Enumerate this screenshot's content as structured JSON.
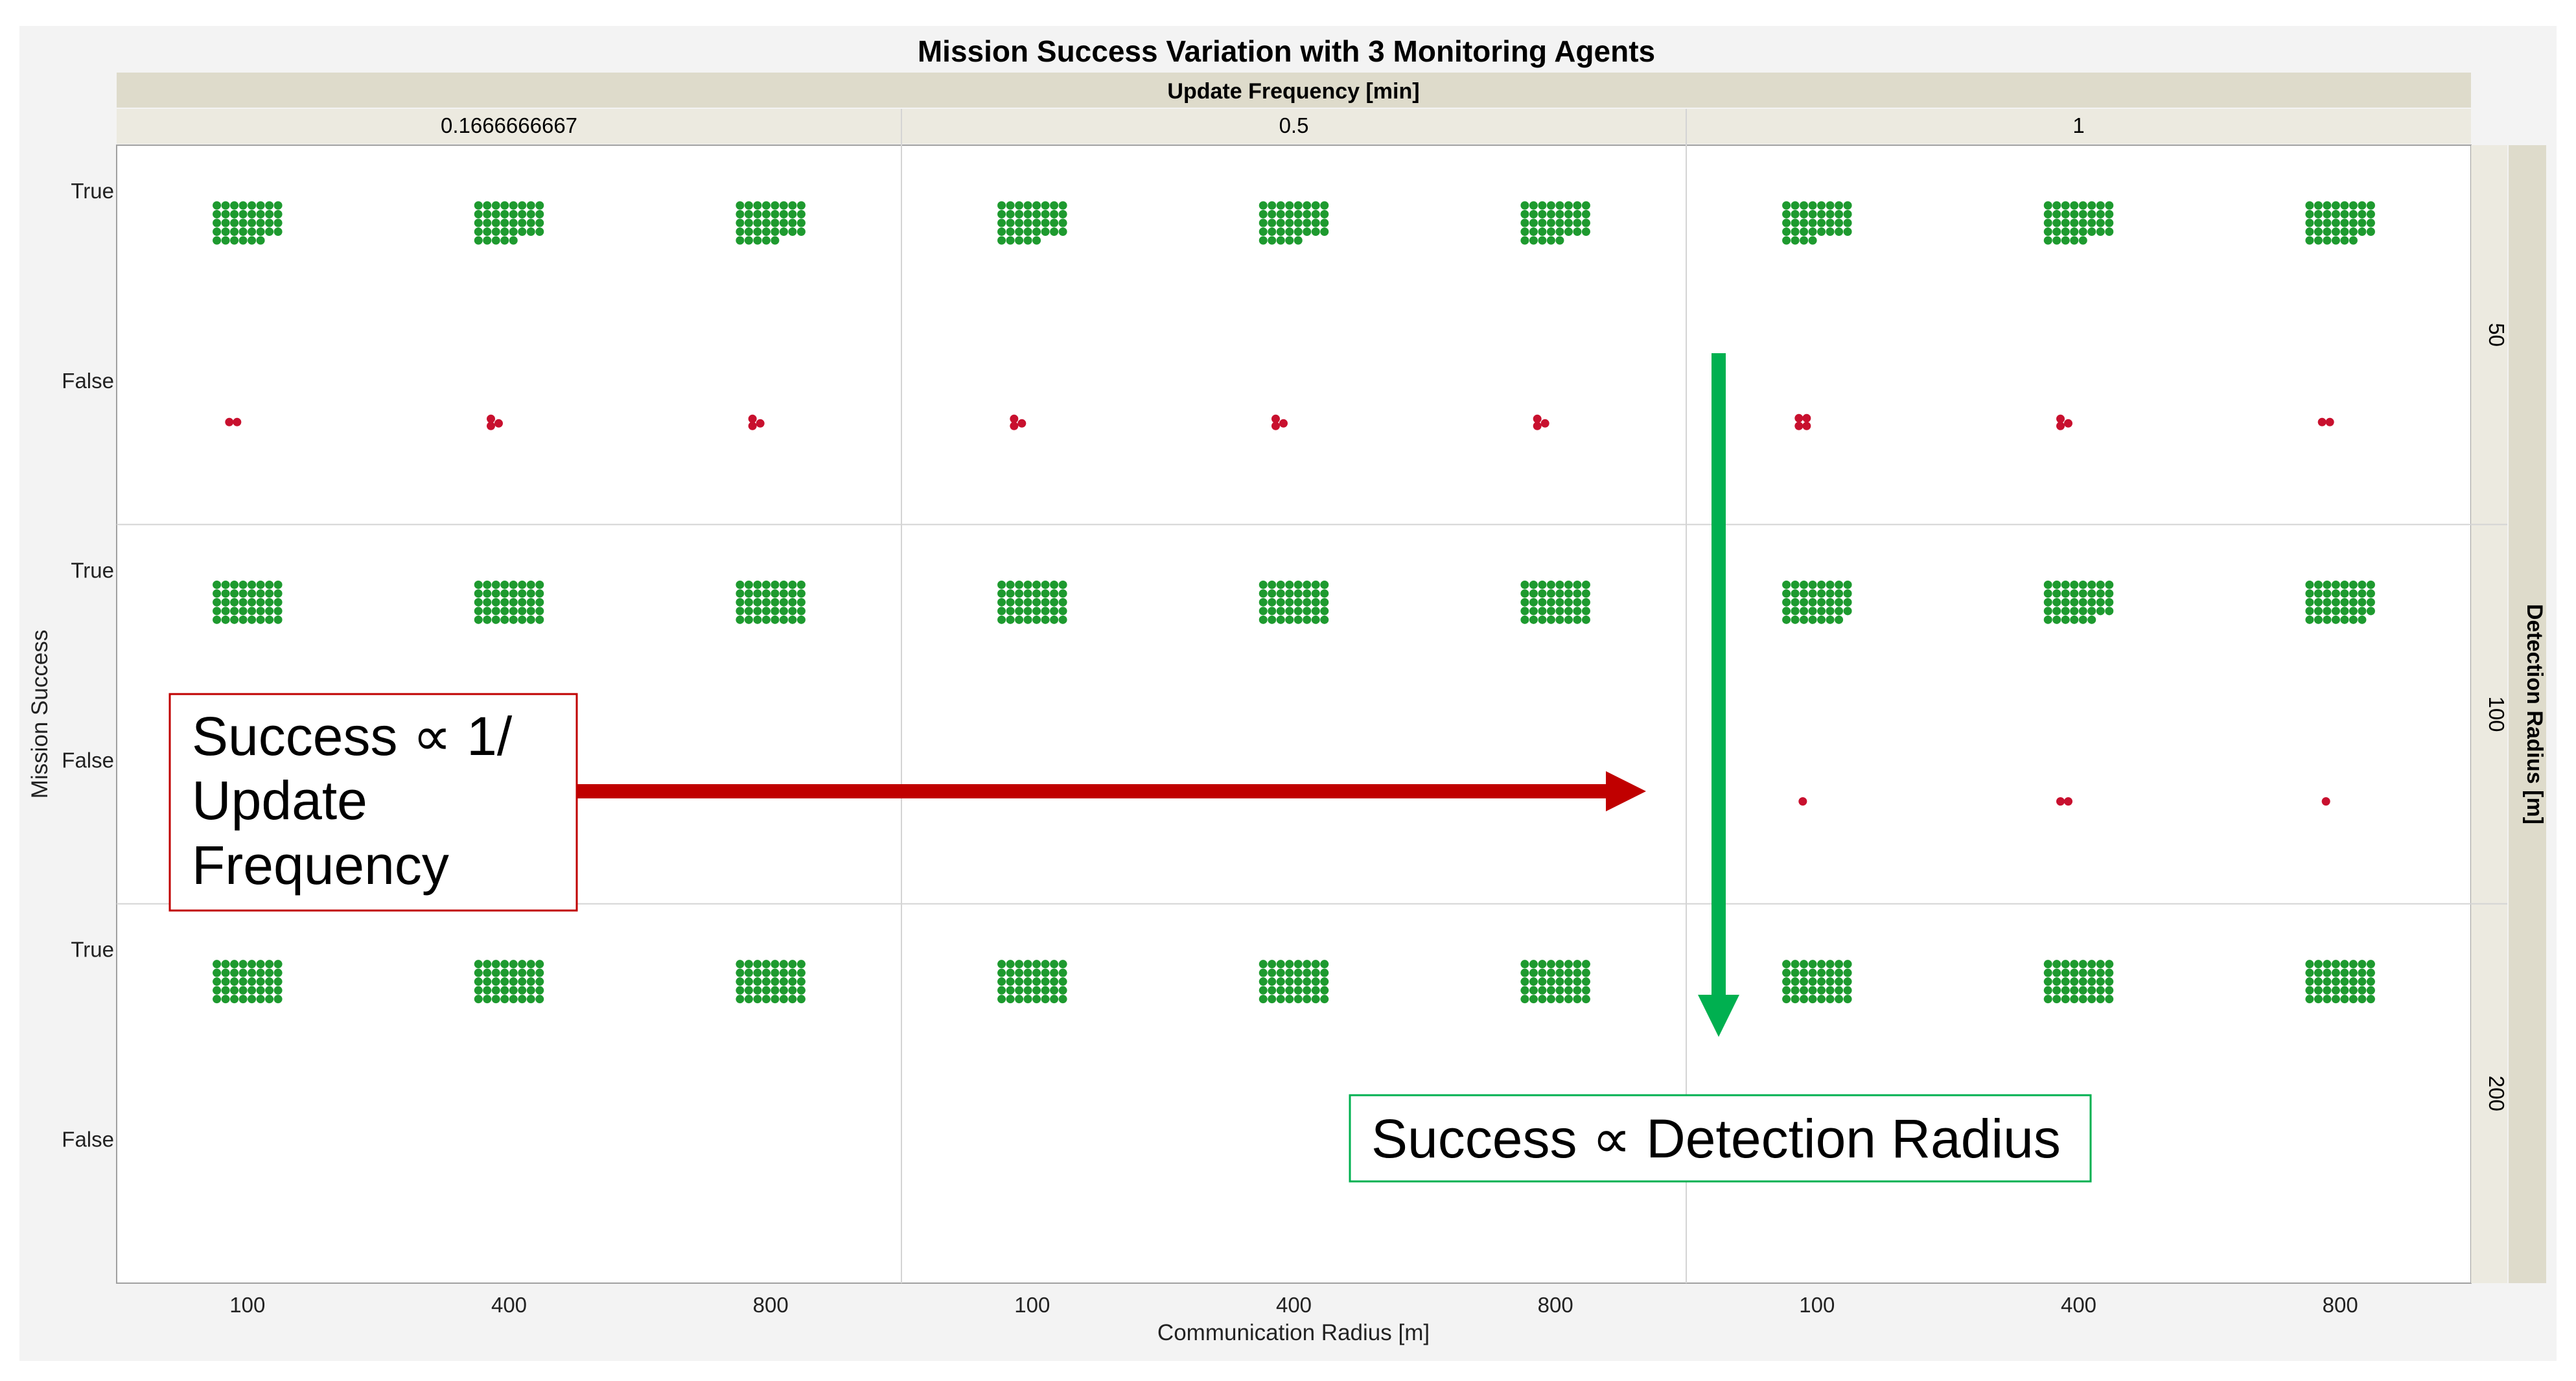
{
  "chart_data": {
    "type": "scatter",
    "title": "Mission Success Variation with 3 Monitoring Agents",
    "column_facet": {
      "title": "Update Frequency [min]",
      "levels": [
        "0.1666666667",
        "0.5",
        "1"
      ]
    },
    "row_facet": {
      "title": "Detection Radius [m]",
      "levels": [
        "50",
        "100",
        "200"
      ]
    },
    "x_axis": {
      "label": "Communication Radius [m]",
      "categories": [
        "100",
        "400",
        "800"
      ]
    },
    "y_axis": {
      "label": "Mission Success",
      "categories": [
        "True",
        "False"
      ]
    },
    "colors": {
      "True": "#1e9a2f",
      "False": "#c8102e"
    },
    "counts": [
      {
        "detection_radius": "50",
        "update_frequency": "0.1666666667",
        "communication_radius": "100",
        "True": 38,
        "False": 2
      },
      {
        "detection_radius": "50",
        "update_frequency": "0.1666666667",
        "communication_radius": "400",
        "True": 37,
        "False": 3
      },
      {
        "detection_radius": "50",
        "update_frequency": "0.1666666667",
        "communication_radius": "800",
        "True": 37,
        "False": 3
      },
      {
        "detection_radius": "50",
        "update_frequency": "0.5",
        "communication_radius": "100",
        "True": 37,
        "False": 3
      },
      {
        "detection_radius": "50",
        "update_frequency": "0.5",
        "communication_radius": "400",
        "True": 37,
        "False": 3
      },
      {
        "detection_radius": "50",
        "update_frequency": "0.5",
        "communication_radius": "800",
        "True": 37,
        "False": 3
      },
      {
        "detection_radius": "50",
        "update_frequency": "1",
        "communication_radius": "100",
        "True": 36,
        "False": 4
      },
      {
        "detection_radius": "50",
        "update_frequency": "1",
        "communication_radius": "400",
        "True": 37,
        "False": 3
      },
      {
        "detection_radius": "50",
        "update_frequency": "1",
        "communication_radius": "800",
        "True": 38,
        "False": 2
      },
      {
        "detection_radius": "100",
        "update_frequency": "0.1666666667",
        "communication_radius": "100",
        "True": 40,
        "False": 0
      },
      {
        "detection_radius": "100",
        "update_frequency": "0.1666666667",
        "communication_radius": "400",
        "True": 40,
        "False": 0
      },
      {
        "detection_radius": "100",
        "update_frequency": "0.1666666667",
        "communication_radius": "800",
        "True": 40,
        "False": 0
      },
      {
        "detection_radius": "100",
        "update_frequency": "0.5",
        "communication_radius": "100",
        "True": 40,
        "False": 0
      },
      {
        "detection_radius": "100",
        "update_frequency": "0.5",
        "communication_radius": "400",
        "True": 40,
        "False": 0
      },
      {
        "detection_radius": "100",
        "update_frequency": "0.5",
        "communication_radius": "800",
        "True": 40,
        "False": 0
      },
      {
        "detection_radius": "100",
        "update_frequency": "1",
        "communication_radius": "100",
        "True": 39,
        "False": 1
      },
      {
        "detection_radius": "100",
        "update_frequency": "1",
        "communication_radius": "400",
        "True": 38,
        "False": 2
      },
      {
        "detection_radius": "100",
        "update_frequency": "1",
        "communication_radius": "800",
        "True": 39,
        "False": 1
      },
      {
        "detection_radius": "200",
        "update_frequency": "0.1666666667",
        "communication_radius": "100",
        "True": 40,
        "False": 0
      },
      {
        "detection_radius": "200",
        "update_frequency": "0.1666666667",
        "communication_radius": "400",
        "True": 40,
        "False": 0
      },
      {
        "detection_radius": "200",
        "update_frequency": "0.1666666667",
        "communication_radius": "800",
        "True": 40,
        "False": 0
      },
      {
        "detection_radius": "200",
        "update_frequency": "0.5",
        "communication_radius": "100",
        "True": 40,
        "False": 0
      },
      {
        "detection_radius": "200",
        "update_frequency": "0.5",
        "communication_radius": "400",
        "True": 40,
        "False": 0
      },
      {
        "detection_radius": "200",
        "update_frequency": "0.5",
        "communication_radius": "800",
        "True": 40,
        "False": 0
      },
      {
        "detection_radius": "200",
        "update_frequency": "1",
        "communication_radius": "100",
        "True": 40,
        "False": 0
      },
      {
        "detection_radius": "200",
        "update_frequency": "1",
        "communication_radius": "400",
        "True": 40,
        "False": 0
      },
      {
        "detection_radius": "200",
        "update_frequency": "1",
        "communication_radius": "800",
        "True": 40,
        "False": 0
      }
    ],
    "annotations": [
      {
        "text": "Success ∝ 1/\nUpdate\nFrequency",
        "lines": [
          "Success ∝ 1/",
          "Update",
          "Frequency"
        ],
        "arrow": "right",
        "color": "#c00000"
      },
      {
        "text": "Success ∝ Detection Radius",
        "lines": [
          "Success ∝ Detection Radius"
        ],
        "arrow": "down",
        "color": "#00b050"
      }
    ],
    "grid": true
  }
}
